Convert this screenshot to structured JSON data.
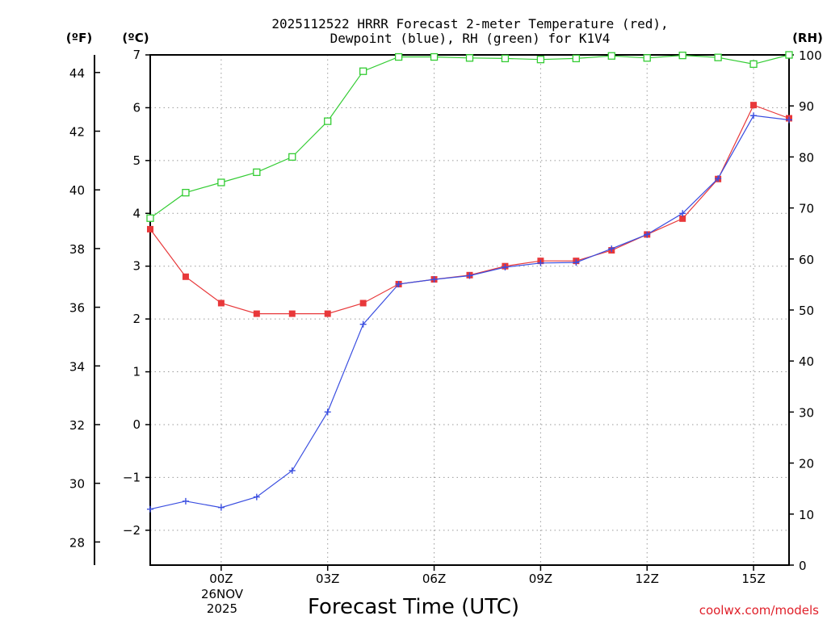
{
  "chart_data": {
    "type": "line",
    "title_lines": [
      "2025112522 HRRR Forecast 2-meter Temperature (red),",
      "Dewpoint (blue), RH (green) for K1V4"
    ],
    "xlabel": "Forecast Time (UTC)",
    "credit": "coolwx.com/models",
    "units": {
      "fahrenheit": "(ºF)",
      "celsius": "(ºC)",
      "rh": "(RH)"
    },
    "x_hours": [
      -2,
      -1,
      0,
      1,
      2,
      3,
      4,
      5,
      6,
      7,
      8,
      9,
      10,
      11,
      12,
      13,
      14,
      15,
      16
    ],
    "xlim": [
      -2,
      16
    ],
    "x_ticks": [
      {
        "h": 0,
        "label": "00Z"
      },
      {
        "h": 3,
        "label": "03Z"
      },
      {
        "h": 6,
        "label": "06Z"
      },
      {
        "h": 9,
        "label": "09Z"
      },
      {
        "h": 12,
        "label": "12Z"
      },
      {
        "h": 15,
        "label": "15Z"
      }
    ],
    "date_label": [
      "26NOV",
      "2025"
    ],
    "celsius_axis": {
      "ylim": [
        -2.66,
        7
      ],
      "ticks": [
        -2,
        -1,
        0,
        1,
        2,
        3,
        4,
        5,
        6,
        7
      ]
    },
    "fahrenheit_axis": {
      "ticks": [
        28,
        30,
        32,
        34,
        36,
        38,
        40,
        42,
        44
      ]
    },
    "rh_axis": {
      "ylim": [
        0,
        100
      ],
      "ticks": [
        0,
        10,
        20,
        30,
        40,
        50,
        60,
        70,
        80,
        90,
        100
      ]
    },
    "series": [
      {
        "name": "Temperature",
        "axis": "celsius",
        "color": "#e8383a",
        "marker": "filled-square",
        "values": [
          3.7,
          2.8,
          2.3,
          2.1,
          2.1,
          2.1,
          2.3,
          2.66,
          2.75,
          2.83,
          3.0,
          3.1,
          3.1,
          3.3,
          3.6,
          3.9,
          4.65,
          6.05,
          5.8
        ]
      },
      {
        "name": "Dewpoint",
        "axis": "celsius",
        "color": "#3a4ee0",
        "marker": "plus",
        "values": [
          -1.6,
          -1.45,
          -1.57,
          -1.37,
          -0.87,
          0.24,
          1.9,
          2.66,
          2.75,
          2.82,
          2.98,
          3.06,
          3.07,
          3.33,
          3.6,
          4.0,
          4.66,
          5.85,
          5.77
        ]
      },
      {
        "name": "RH",
        "axis": "rh",
        "color": "#33cc33",
        "marker": "open-square",
        "values": [
          68,
          73,
          75,
          77,
          80,
          87,
          96.8,
          99.6,
          99.6,
          99.4,
          99.3,
          99.1,
          99.3,
          99.8,
          99.4,
          99.9,
          99.5,
          98.2,
          100
        ]
      }
    ]
  }
}
